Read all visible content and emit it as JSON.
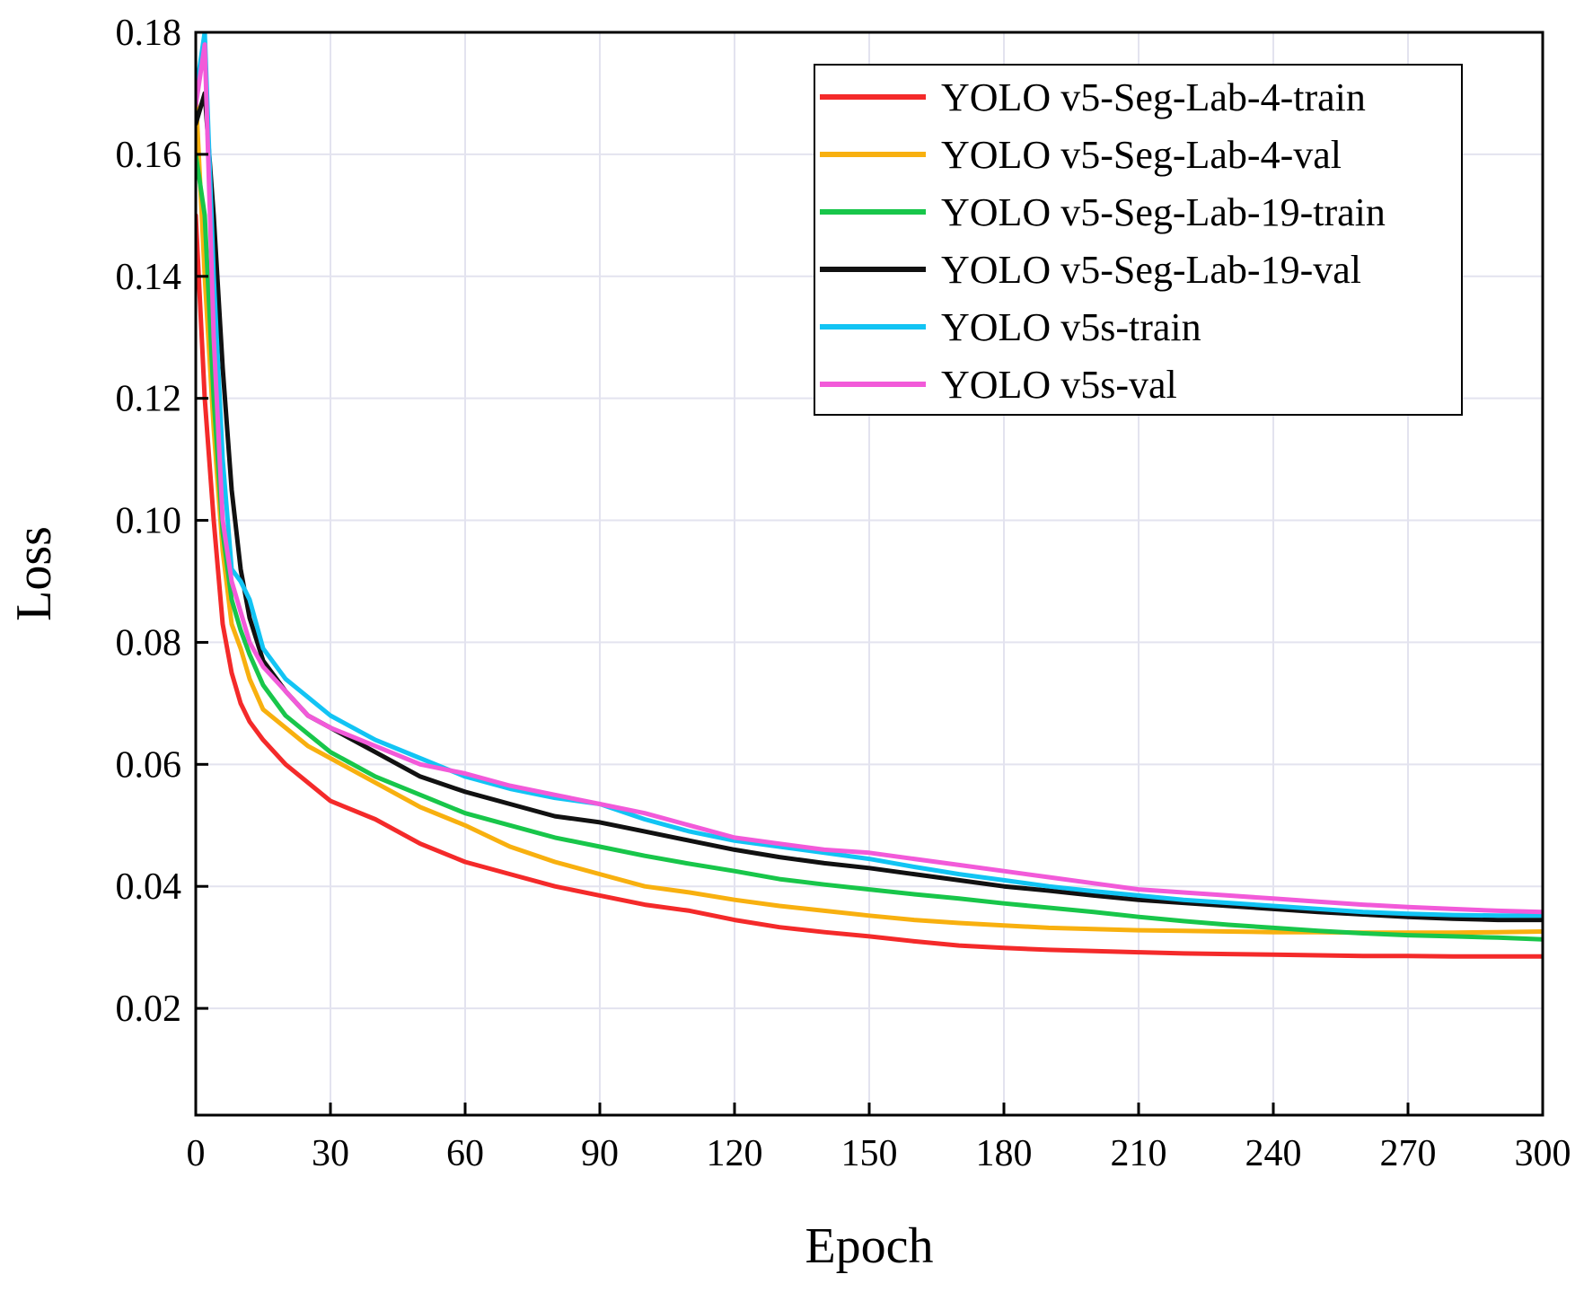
{
  "chart_data": {
    "type": "line",
    "title": "",
    "xlabel": "Epoch",
    "ylabel": "Loss",
    "xlim": [
      0,
      300
    ],
    "ylim": [
      0.0025,
      0.18
    ],
    "xticks": [
      0,
      30,
      60,
      90,
      120,
      150,
      180,
      210,
      240,
      270,
      300
    ],
    "yticks": [
      0.02,
      0.04,
      0.06,
      0.08,
      0.1,
      0.12,
      0.14,
      0.16,
      0.18
    ],
    "ytick_labels": [
      "0.02",
      "0.04",
      "0.06",
      "0.08",
      "0.10",
      "0.12",
      "0.14",
      "0.16",
      "0.18"
    ],
    "grid": true,
    "legend_position": "top-right",
    "series": [
      {
        "name": "YOLO v5-Seg-Lab-4-train",
        "color": "#f42a2a",
        "x": [
          0,
          2,
          4,
          6,
          8,
          10,
          12,
          15,
          20,
          25,
          30,
          40,
          50,
          60,
          70,
          80,
          90,
          100,
          110,
          120,
          130,
          140,
          150,
          160,
          170,
          180,
          190,
          200,
          210,
          220,
          230,
          240,
          250,
          260,
          270,
          280,
          290,
          300
        ],
        "values": [
          0.15,
          0.12,
          0.1,
          0.083,
          0.075,
          0.07,
          0.067,
          0.064,
          0.06,
          0.057,
          0.054,
          0.051,
          0.047,
          0.044,
          0.042,
          0.04,
          0.0385,
          0.037,
          0.036,
          0.0345,
          0.0333,
          0.0325,
          0.0318,
          0.031,
          0.0303,
          0.0299,
          0.0296,
          0.0294,
          0.0292,
          0.029,
          0.0289,
          0.0288,
          0.0287,
          0.0286,
          0.0286,
          0.0285,
          0.0285,
          0.0285
        ]
      },
      {
        "name": "YOLO v5-Seg-Lab-4-val",
        "color": "#f8b00f",
        "x": [
          0,
          2,
          4,
          6,
          8,
          10,
          12,
          15,
          20,
          25,
          30,
          40,
          50,
          60,
          70,
          80,
          90,
          100,
          110,
          120,
          130,
          140,
          150,
          160,
          170,
          180,
          190,
          200,
          210,
          220,
          230,
          240,
          250,
          260,
          270,
          280,
          290,
          300
        ],
        "values": [
          0.17,
          0.14,
          0.115,
          0.095,
          0.083,
          0.079,
          0.074,
          0.069,
          0.066,
          0.063,
          0.061,
          0.057,
          0.053,
          0.05,
          0.0465,
          0.044,
          0.042,
          0.04,
          0.039,
          0.0378,
          0.0368,
          0.036,
          0.0352,
          0.0345,
          0.034,
          0.0336,
          0.0332,
          0.033,
          0.0328,
          0.0327,
          0.0326,
          0.0325,
          0.0325,
          0.0324,
          0.0324,
          0.0324,
          0.0325,
          0.0326
        ]
      },
      {
        "name": "YOLO v5-Seg-Lab-19-train",
        "color": "#18c64a",
        "x": [
          0,
          2,
          4,
          6,
          8,
          10,
          12,
          15,
          20,
          25,
          30,
          40,
          50,
          60,
          70,
          80,
          90,
          100,
          110,
          120,
          130,
          140,
          150,
          160,
          170,
          180,
          190,
          200,
          210,
          220,
          230,
          240,
          250,
          260,
          270,
          280,
          290,
          300
        ],
        "values": [
          0.16,
          0.15,
          0.12,
          0.098,
          0.087,
          0.082,
          0.078,
          0.073,
          0.068,
          0.065,
          0.062,
          0.058,
          0.055,
          0.052,
          0.05,
          0.048,
          0.0465,
          0.045,
          0.0437,
          0.0425,
          0.0412,
          0.0403,
          0.0395,
          0.0387,
          0.038,
          0.0372,
          0.0365,
          0.0358,
          0.035,
          0.0343,
          0.0337,
          0.0332,
          0.0327,
          0.0323,
          0.032,
          0.0318,
          0.0316,
          0.0313
        ]
      },
      {
        "name": "YOLO v5-Seg-Lab-19-val",
        "color": "#111111",
        "x": [
          0,
          2,
          4,
          6,
          8,
          10,
          12,
          15,
          20,
          25,
          30,
          40,
          50,
          60,
          70,
          80,
          90,
          100,
          110,
          120,
          130,
          140,
          150,
          160,
          170,
          180,
          190,
          200,
          210,
          220,
          230,
          240,
          250,
          260,
          270,
          280,
          290,
          300
        ],
        "values": [
          0.165,
          0.17,
          0.15,
          0.125,
          0.105,
          0.092,
          0.084,
          0.077,
          0.072,
          0.068,
          0.066,
          0.062,
          0.058,
          0.0555,
          0.0535,
          0.0515,
          0.0505,
          0.049,
          0.0475,
          0.046,
          0.0448,
          0.0438,
          0.043,
          0.042,
          0.041,
          0.04,
          0.0393,
          0.0385,
          0.0378,
          0.0373,
          0.0368,
          0.0363,
          0.0358,
          0.0354,
          0.035,
          0.0347,
          0.0345,
          0.0345
        ]
      },
      {
        "name": "YOLO v5s-train",
        "color": "#12c4f4",
        "x": [
          0,
          2,
          4,
          6,
          8,
          10,
          12,
          15,
          20,
          25,
          30,
          40,
          50,
          60,
          70,
          80,
          90,
          100,
          110,
          120,
          130,
          140,
          150,
          160,
          170,
          180,
          190,
          200,
          210,
          220,
          230,
          240,
          250,
          260,
          270,
          280,
          290,
          300
        ],
        "values": [
          0.17,
          0.18,
          0.14,
          0.11,
          0.092,
          0.09,
          0.087,
          0.079,
          0.074,
          0.071,
          0.068,
          0.064,
          0.061,
          0.058,
          0.056,
          0.0545,
          0.0535,
          0.051,
          0.049,
          0.0475,
          0.0465,
          0.0455,
          0.0445,
          0.0432,
          0.042,
          0.041,
          0.04,
          0.0392,
          0.0385,
          0.0378,
          0.0373,
          0.0368,
          0.0363,
          0.0358,
          0.0355,
          0.0353,
          0.0352,
          0.0352
        ]
      },
      {
        "name": "YOLO v5s-val",
        "color": "#f25ad9",
        "x": [
          0,
          2,
          4,
          6,
          8,
          10,
          12,
          15,
          20,
          25,
          30,
          40,
          50,
          60,
          70,
          80,
          90,
          100,
          110,
          120,
          130,
          140,
          150,
          160,
          170,
          180,
          190,
          200,
          210,
          220,
          230,
          240,
          250,
          260,
          270,
          280,
          290,
          300
        ],
        "values": [
          0.168,
          0.178,
          0.13,
          0.1,
          0.09,
          0.085,
          0.08,
          0.076,
          0.072,
          0.068,
          0.066,
          0.063,
          0.06,
          0.0585,
          0.0565,
          0.055,
          0.0535,
          0.052,
          0.05,
          0.048,
          0.047,
          0.046,
          0.0455,
          0.0445,
          0.0435,
          0.0425,
          0.0415,
          0.0405,
          0.0395,
          0.039,
          0.0385,
          0.038,
          0.0375,
          0.037,
          0.0366,
          0.0363,
          0.036,
          0.0358
        ]
      }
    ]
  }
}
